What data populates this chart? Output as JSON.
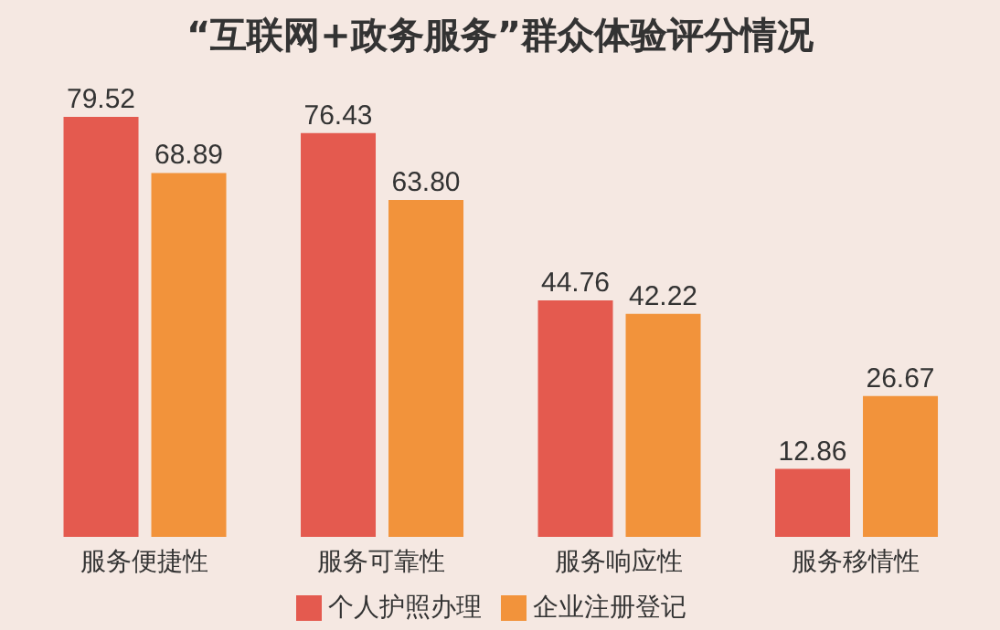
{
  "chart_data": {
    "type": "bar",
    "title": "“互联网+政务服务”群众体验评分情况",
    "categories": [
      "服务便捷性",
      "服务可靠性",
      "服务响应性",
      "服务移情性"
    ],
    "series": [
      {
        "name": "个人护照办理",
        "color": "#e45a4f",
        "values": [
          79.52,
          76.43,
          44.76,
          12.86
        ],
        "value_labels": [
          "79.52",
          "76.43",
          "44.76",
          "12.86"
        ]
      },
      {
        "name": "企业注册登记",
        "color": "#f2933b",
        "values": [
          68.89,
          63.8,
          42.22,
          26.67
        ],
        "value_labels": [
          "68.89",
          "63.80",
          "42.22",
          "26.67"
        ]
      }
    ],
    "legend": "bottom",
    "grid": false
  }
}
